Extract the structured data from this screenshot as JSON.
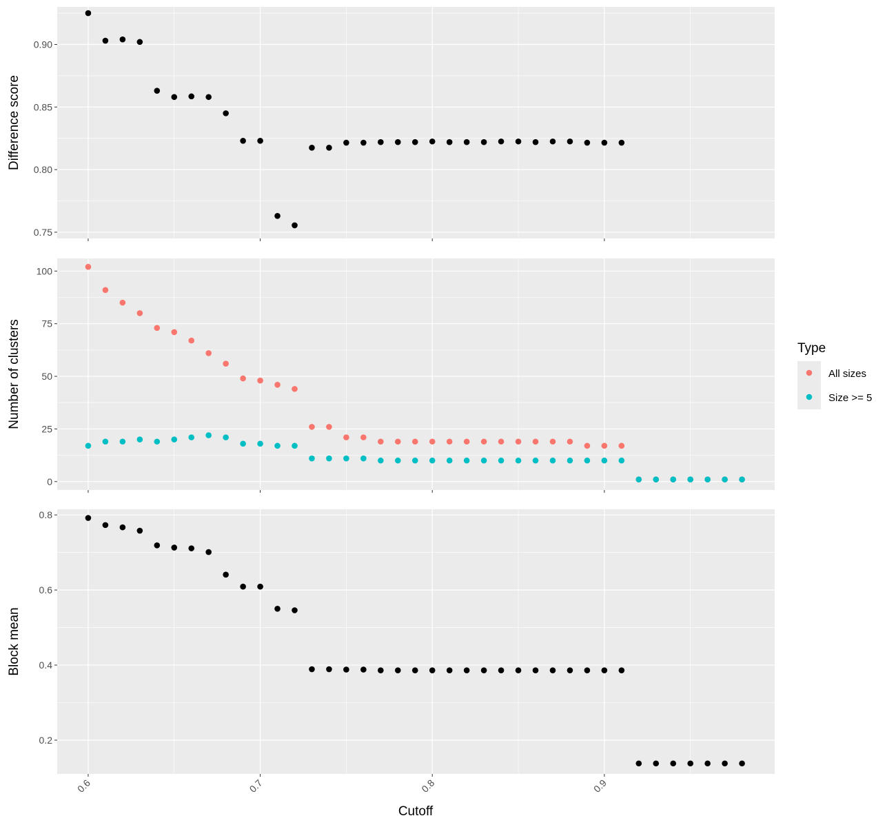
{
  "chart_data": {
    "type": "scatter",
    "x_axis": {
      "title": "Cutoff",
      "range": [
        0.582,
        0.999
      ],
      "ticks": [
        0.6,
        0.7,
        0.8,
        0.9
      ],
      "tick_labels": [
        "0.6",
        "0.7",
        "0.8",
        "0.9"
      ]
    },
    "grid": true,
    "panels": [
      {
        "ylabel": "Difference score",
        "ylim": [
          0.745,
          0.93
        ],
        "y_ticks": [
          0.75,
          0.8,
          0.85,
          0.9
        ],
        "y_tick_labels": [
          "0.75",
          "0.80",
          "0.85",
          "0.90"
        ],
        "series": [
          {
            "color": "#000000",
            "x": [
              0.6,
              0.61,
              0.62,
              0.63,
              0.64,
              0.65,
              0.66,
              0.67,
              0.68,
              0.69,
              0.7,
              0.71,
              0.72,
              0.73,
              0.74,
              0.75,
              0.76,
              0.77,
              0.78,
              0.79,
              0.8,
              0.81,
              0.82,
              0.83,
              0.84,
              0.85,
              0.86,
              0.87,
              0.88,
              0.89,
              0.9,
              0.91
            ],
            "y": [
              0.925,
              0.903,
              0.904,
              0.902,
              0.863,
              0.858,
              0.8585,
              0.858,
              0.845,
              0.823,
              0.823,
              0.763,
              0.7555,
              0.8175,
              0.8175,
              0.8215,
              0.8215,
              0.822,
              0.822,
              0.822,
              0.8225,
              0.822,
              0.822,
              0.822,
              0.8225,
              0.8225,
              0.822,
              0.8225,
              0.8225,
              0.8215,
              0.8215,
              0.8215
            ]
          }
        ]
      },
      {
        "ylabel": "Number of clusters",
        "ylim": [
          -4,
          106
        ],
        "y_ticks": [
          0,
          25,
          50,
          75,
          100
        ],
        "y_tick_labels": [
          "0",
          "25",
          "50",
          "75",
          "100"
        ],
        "series": [
          {
            "name": "All sizes",
            "color": "#F8766D",
            "x": [
              0.6,
              0.61,
              0.62,
              0.63,
              0.64,
              0.65,
              0.66,
              0.67,
              0.68,
              0.69,
              0.7,
              0.71,
              0.72,
              0.73,
              0.74,
              0.75,
              0.76,
              0.77,
              0.78,
              0.79,
              0.8,
              0.81,
              0.82,
              0.83,
              0.84,
              0.85,
              0.86,
              0.87,
              0.88,
              0.89,
              0.9,
              0.91,
              0.92,
              0.93,
              0.94,
              0.95,
              0.96,
              0.97,
              0.98
            ],
            "y": [
              102,
              91,
              85,
              80,
              73,
              71,
              67,
              61,
              56,
              49,
              48,
              46,
              44,
              26,
              26,
              21,
              21,
              19,
              19,
              19,
              19,
              19,
              19,
              19,
              19,
              19,
              19,
              19,
              19,
              17,
              17,
              17,
              1,
              1,
              1,
              1,
              1,
              1,
              1
            ]
          },
          {
            "name": "Size >= 5",
            "color": "#00BFC4",
            "x": [
              0.6,
              0.61,
              0.62,
              0.63,
              0.64,
              0.65,
              0.66,
              0.67,
              0.68,
              0.69,
              0.7,
              0.71,
              0.72,
              0.73,
              0.74,
              0.75,
              0.76,
              0.77,
              0.78,
              0.79,
              0.8,
              0.81,
              0.82,
              0.83,
              0.84,
              0.85,
              0.86,
              0.87,
              0.88,
              0.89,
              0.9,
              0.91,
              0.92,
              0.93,
              0.94,
              0.95,
              0.96,
              0.97,
              0.98
            ],
            "y": [
              17,
              19,
              19,
              20,
              19,
              20,
              21,
              22,
              21,
              18,
              18,
              17,
              17,
              11,
              11,
              11,
              11,
              10,
              10,
              10,
              10,
              10,
              10,
              10,
              10,
              10,
              10,
              10,
              10,
              10,
              10,
              10,
              1,
              1,
              1,
              1,
              1,
              1,
              1
            ]
          }
        ]
      },
      {
        "ylabel": "Block mean",
        "ylim": [
          0.11,
          0.815
        ],
        "y_ticks": [
          0.2,
          0.4,
          0.6,
          0.8
        ],
        "y_tick_labels": [
          "0.2",
          "0.4",
          "0.6",
          "0.8"
        ],
        "series": [
          {
            "color": "#000000",
            "x": [
              0.6,
              0.61,
              0.62,
              0.63,
              0.64,
              0.65,
              0.66,
              0.67,
              0.68,
              0.69,
              0.7,
              0.71,
              0.72,
              0.73,
              0.74,
              0.75,
              0.76,
              0.77,
              0.78,
              0.79,
              0.8,
              0.81,
              0.82,
              0.83,
              0.84,
              0.85,
              0.86,
              0.87,
              0.88,
              0.89,
              0.9,
              0.91,
              0.92,
              0.93,
              0.94,
              0.95,
              0.96,
              0.97,
              0.98
            ],
            "y": [
              0.792,
              0.773,
              0.767,
              0.758,
              0.719,
              0.713,
              0.711,
              0.701,
              0.641,
              0.609,
              0.609,
              0.55,
              0.546,
              0.389,
              0.389,
              0.388,
              0.388,
              0.386,
              0.386,
              0.386,
              0.386,
              0.386,
              0.386,
              0.386,
              0.386,
              0.386,
              0.386,
              0.386,
              0.386,
              0.386,
              0.386,
              0.386,
              0.138,
              0.138,
              0.138,
              0.138,
              0.138,
              0.138,
              0.138
            ]
          }
        ]
      }
    ],
    "legend": {
      "title": "Type",
      "placement": "right",
      "entries": [
        {
          "label": "All sizes",
          "color": "#F8766D"
        },
        {
          "label": "Size >= 5",
          "color": "#00BFC4"
        }
      ]
    }
  }
}
